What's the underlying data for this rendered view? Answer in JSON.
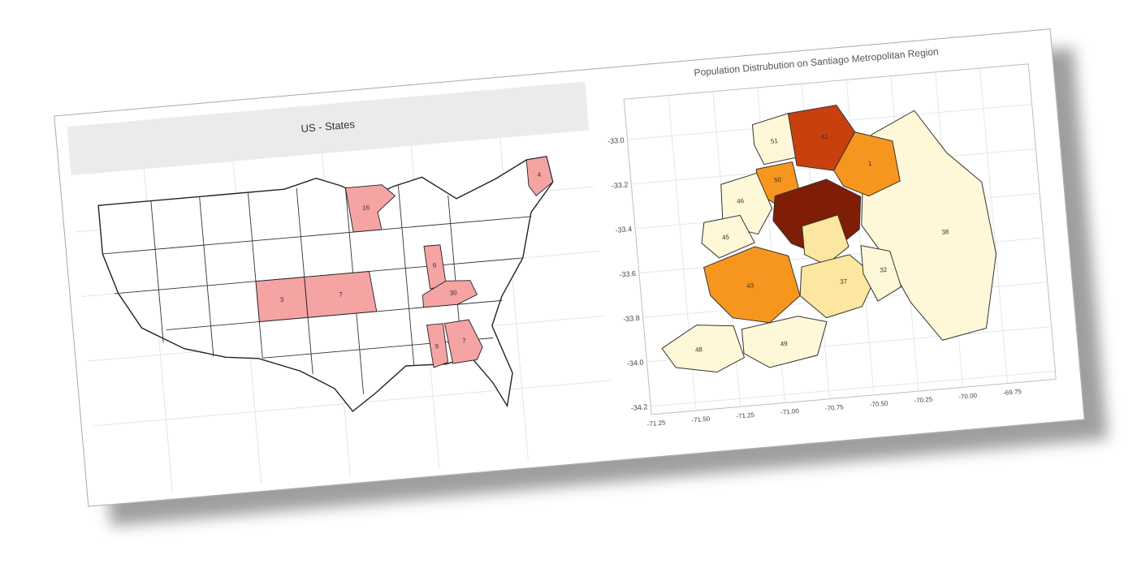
{
  "us_map": {
    "title": "US - States",
    "state_labels": [
      "16",
      "4",
      "3",
      "7",
      "6",
      "30",
      "9",
      "7"
    ],
    "colors": {
      "highlight": "#f5a3a3",
      "default": "#ffffff",
      "border": "#222222"
    }
  },
  "santiago_map": {
    "title": "Population Distrubution on Santiago Metropolitan Region",
    "y_ticks": [
      "-33.0",
      "-33.2",
      "-33.4",
      "-33.6",
      "-33.8",
      "-34.0",
      "-34.2"
    ],
    "x_ticks": [
      "-71.25",
      "-71.50",
      "-71.25",
      "-71.00",
      "-70.75",
      "-70.50",
      "-70.25",
      "-70.00",
      "-69.75"
    ],
    "commune_labels": [
      "51",
      "42",
      "50",
      "1",
      "46",
      "45",
      "38",
      "32",
      "43",
      "37",
      "48",
      "49"
    ],
    "colors": {
      "dark": "#7f1d06",
      "red": "#c8400e",
      "orange": "#f7961e",
      "pale": "#fff8d8",
      "light": "#fde6a0"
    }
  }
}
